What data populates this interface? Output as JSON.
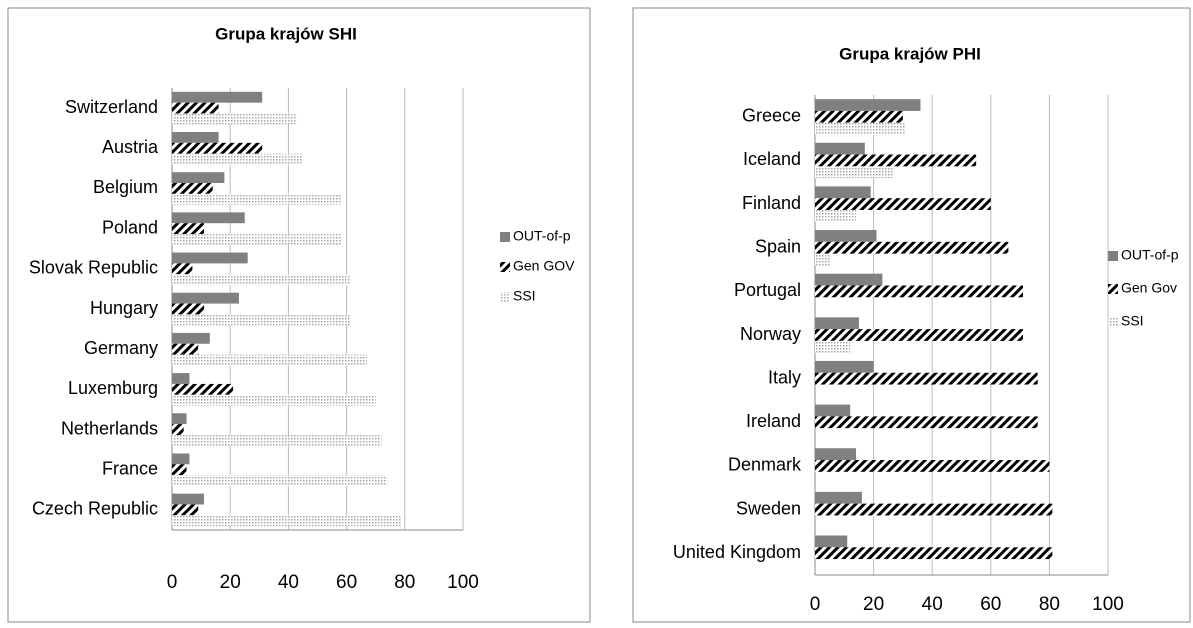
{
  "chart_data": [
    {
      "type": "barh",
      "title": "Grupa krajów SHI",
      "categories": [
        "Switzerland",
        "Austria",
        "Belgium",
        "Poland",
        "Slovak Republic",
        "Hungary",
        "Germany",
        "Luxemburg",
        "Netherlands",
        "France",
        "Czech Republic"
      ],
      "series": [
        {
          "name": "OUT-of-p",
          "color": "#808080",
          "values": [
            31,
            16,
            18,
            25,
            26,
            23,
            13,
            6,
            5,
            6,
            11
          ]
        },
        {
          "name": "Gen GOV",
          "color": "#000000",
          "values": [
            16,
            31,
            14,
            11,
            7,
            11,
            9,
            21,
            4,
            5,
            9
          ]
        },
        {
          "name": "SSI",
          "color": "#a6a6a6",
          "values": [
            43,
            45,
            58,
            58,
            61,
            61,
            67,
            70,
            72,
            74,
            79
          ]
        }
      ],
      "xlim": [
        0,
        100
      ],
      "xticks": [
        0,
        20,
        40,
        60,
        80,
        100
      ],
      "grid": true,
      "legend": "right"
    },
    {
      "type": "barh",
      "title": "Grupa krajów PHI",
      "categories": [
        "Greece",
        "Iceland",
        "Finland",
        "Spain",
        "Portugal",
        "Norway",
        "Italy",
        "Ireland",
        "Denmark",
        "Sweden",
        "United Kingdom"
      ],
      "series": [
        {
          "name": "OUT-of-p",
          "color": "#808080",
          "values": [
            36,
            17,
            19,
            21,
            23,
            15,
            20,
            12,
            14,
            16,
            11
          ]
        },
        {
          "name": "Gen Gov",
          "color": "#000000",
          "values": [
            30,
            55,
            60,
            66,
            71,
            71,
            76,
            76,
            80,
            81,
            81
          ]
        },
        {
          "name": "SSI",
          "color": "#a6a6a6",
          "values": [
            31,
            27,
            14,
            5,
            null,
            12,
            null,
            null,
            null,
            null,
            null
          ]
        }
      ],
      "xlim": [
        0,
        100
      ],
      "xticks": [
        0,
        20,
        40,
        60,
        80,
        100
      ],
      "grid": true,
      "legend": "right"
    }
  ]
}
